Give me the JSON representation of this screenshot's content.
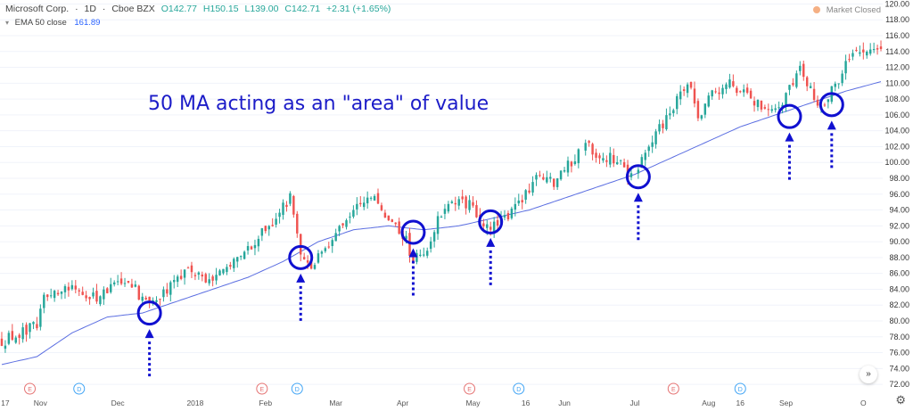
{
  "header": {
    "symbol": "Microsoft Corp.",
    "interval": "1D",
    "exchange": "Cboe BZX",
    "open": "O142.77",
    "high": "H150.15",
    "low": "L139.00",
    "close": "C142.71",
    "change": "+2.31 (+1.65%)",
    "market_status": "Market Closed"
  },
  "indicator": {
    "label": "EMA 50 close",
    "value": "161.89"
  },
  "annotation": "50 MA acting as an \"area\" of value",
  "colors": {
    "up": "#26a69a",
    "down": "#ef5350",
    "ema": "#5b6ee1",
    "circle": "#1010d0",
    "arrow": "#1010d0",
    "event_E": "#e57373",
    "event_D": "#42a5f5"
  },
  "icons": [
    "market-closed-dot-icon",
    "settings-gear-icon",
    "scroll-right-icon",
    "chevron-down-icon"
  ],
  "chart_data": {
    "type": "candlestick",
    "y_axis_ticks": [
      "120.00",
      "118.00",
      "116.00",
      "114.00",
      "112.00",
      "110.00",
      "108.00",
      "106.00",
      "104.00",
      "102.00",
      "100.00",
      "98.00",
      "96.00",
      "94.00",
      "92.00",
      "90.00",
      "88.00",
      "86.00",
      "84.00",
      "82.00",
      "80.00",
      "78.00",
      "76.00",
      "74.00",
      "72.00"
    ],
    "ylim": [
      71,
      120.5
    ],
    "x_axis_labels": [
      "17",
      "Nov",
      "Dec",
      "2018",
      "Feb",
      "Mar",
      "Apr",
      "May",
      "16",
      "Jun",
      "Jul",
      "Aug",
      "16",
      "Sep",
      "O"
    ],
    "events": [
      {
        "type": "E",
        "after_label": "Oct"
      },
      {
        "type": "D",
        "after_label": "Nov"
      },
      {
        "type": "E",
        "after_label": "Jan"
      },
      {
        "type": "D",
        "after_label": "Feb"
      },
      {
        "type": "E",
        "after_label": "Apr"
      },
      {
        "type": "D",
        "after_label": "May"
      },
      {
        "type": "E",
        "after_label": "Jul"
      },
      {
        "type": "D",
        "after_label": "Aug"
      }
    ],
    "price_path": [
      [
        0,
        77.5
      ],
      [
        6,
        78.5
      ],
      [
        10,
        79.5
      ],
      [
        12,
        83.5
      ],
      [
        20,
        84.5
      ],
      [
        27,
        83.0
      ],
      [
        33,
        84.5
      ],
      [
        37,
        84.5
      ],
      [
        42,
        81.5
      ],
      [
        46,
        83.5
      ],
      [
        52,
        86.5
      ],
      [
        58,
        85.5
      ],
      [
        64,
        86.5
      ],
      [
        70,
        89.0
      ],
      [
        76,
        92.0
      ],
      [
        82,
        95.5
      ],
      [
        85,
        88.5
      ],
      [
        88,
        86.0
      ],
      [
        92,
        89.5
      ],
      [
        97,
        92.5
      ],
      [
        102,
        94.5
      ],
      [
        106,
        96.0
      ],
      [
        109,
        93.0
      ],
      [
        112,
        92.5
      ],
      [
        115,
        90.0
      ],
      [
        117,
        87.5
      ],
      [
        120,
        88.5
      ],
      [
        125,
        93.5
      ],
      [
        130,
        95.0
      ],
      [
        134,
        94.5
      ],
      [
        137,
        91.5
      ],
      [
        141,
        92.0
      ],
      [
        146,
        94.5
      ],
      [
        150,
        97.0
      ],
      [
        153,
        98.5
      ],
      [
        157,
        97.5
      ],
      [
        162,
        100.0
      ],
      [
        166,
        102.5
      ],
      [
        170,
        101.0
      ],
      [
        175,
        100.5
      ],
      [
        178,
        98.0
      ],
      [
        181,
        99.5
      ],
      [
        185,
        103.0
      ],
      [
        190,
        106.5
      ],
      [
        195,
        110.0
      ],
      [
        198,
        106.0
      ],
      [
        202,
        108.5
      ],
      [
        206,
        110.0
      ],
      [
        210,
        109.0
      ],
      [
        214,
        107.5
      ],
      [
        218,
        106.0
      ],
      [
        222,
        108.0
      ],
      [
        227,
        112.0
      ],
      [
        230,
        109.0
      ],
      [
        233,
        107.0
      ],
      [
        237,
        110.0
      ],
      [
        242,
        113.5
      ],
      [
        247,
        114.5
      ],
      [
        250,
        114.0
      ]
    ],
    "ema_path": [
      [
        0,
        74.5
      ],
      [
        10,
        75.5
      ],
      [
        20,
        78.5
      ],
      [
        30,
        80.5
      ],
      [
        40,
        81.0
      ],
      [
        50,
        82.5
      ],
      [
        60,
        84.0
      ],
      [
        70,
        85.5
      ],
      [
        80,
        87.5
      ],
      [
        90,
        90.0
      ],
      [
        100,
        91.5
      ],
      [
        110,
        92.0
      ],
      [
        120,
        91.5
      ],
      [
        130,
        92.0
      ],
      [
        140,
        93.0
      ],
      [
        150,
        94.0
      ],
      [
        160,
        95.5
      ],
      [
        170,
        97.0
      ],
      [
        180,
        98.5
      ],
      [
        190,
        100.5
      ],
      [
        200,
        102.5
      ],
      [
        210,
        104.5
      ],
      [
        220,
        106.0
      ],
      [
        230,
        107.5
      ],
      [
        240,
        109.0
      ],
      [
        250,
        110.2
      ]
    ],
    "n_bars": 251,
    "touch_points": [
      {
        "bar": 42,
        "price": 81.0
      },
      {
        "bar": 85,
        "price": 88.0
      },
      {
        "bar": 117,
        "price": 91.2
      },
      {
        "bar": 139,
        "price": 92.5
      },
      {
        "bar": 181,
        "price": 98.2
      },
      {
        "bar": 224,
        "price": 105.8
      },
      {
        "bar": 236,
        "price": 107.3
      }
    ]
  }
}
